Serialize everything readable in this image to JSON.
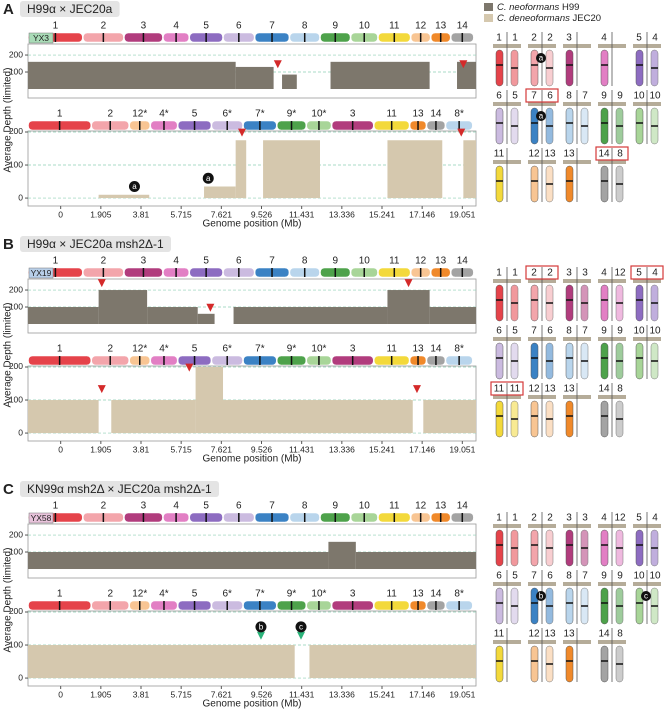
{
  "legend": [
    {
      "species": "C. neoformans",
      "strain": "H99",
      "color": "#7d776c"
    },
    {
      "species": "C. deneoformans",
      "strain": "JEC20",
      "color": "#d5c8ae"
    }
  ],
  "ylabel": "Average Depth (limited)",
  "xlabel": "Genome position (Mb)",
  "xlim": [
    -1.55,
    19.7
  ],
  "xticks": [
    0,
    1.905,
    3.81,
    5.715,
    7.621,
    9.526,
    11.431,
    13.336,
    15.241,
    17.146,
    19.051
  ],
  "grid": true,
  "panels": [
    {
      "letter": "A",
      "title": "H99α × JEC20a",
      "strain": "YX3",
      "strain_color": "#a9dbb7",
      "tracks": [
        {
          "labels": [
            "1",
            "2",
            "3",
            "4",
            "5",
            "6",
            "7",
            "8",
            "9",
            "10",
            "11",
            "12",
            "13",
            "14"
          ],
          "lengths": [
            2.6,
            1.95,
            1.85,
            1.25,
            1.6,
            1.5,
            1.65,
            1.45,
            1.45,
            1.3,
            1.55,
            0.95,
            0.95,
            1.1
          ],
          "colors": [
            "#e5434a",
            "#f3a5ab",
            "#b13c7d",
            "#e27fc4",
            "#8d6cc1",
            "#cbbbe0",
            "#3b82c4",
            "#b9d5ec",
            "#4ea24b",
            "#a8d598",
            "#f3d93b",
            "#f8c593",
            "#f0892a",
            "#a3a3a3"
          ],
          "ylim": [
            -53,
            265
          ],
          "yticks": [
            100,
            200
          ],
          "segments": [
            {
              "start": -1.55,
              "end": 8.3,
              "depth": 160
            },
            {
              "start": 8.3,
              "end": 10.1,
              "depth": 130
            },
            {
              "start": 10.5,
              "end": 11.2,
              "depth": 85
            },
            {
              "start": 12.8,
              "end": 17.5,
              "depth": 160
            },
            {
              "start": 18.8,
              "end": 19.7,
              "depth": 160
            }
          ],
          "markers": [
            {
              "x": 10.3,
              "y": 140,
              "color": "#d42a2a"
            },
            {
              "x": 19.1,
              "y": 140,
              "color": "#d42a2a"
            }
          ]
        },
        {
          "labels": [
            "1",
            "2",
            "12*",
            "4*",
            "5",
            "6*",
            "7*",
            "9*",
            "10*",
            "3",
            "11",
            "13",
            "14",
            "8*"
          ],
          "lengths": [
            3.0,
            1.8,
            1.0,
            1.3,
            1.6,
            1.5,
            1.6,
            1.4,
            1.2,
            2.0,
            1.7,
            0.8,
            0.9,
            1.3
          ],
          "colors": [
            "#e5434a",
            "#f3a5ab",
            "#f8c593",
            "#e27fc4",
            "#8d6cc1",
            "#cbbbe0",
            "#3b82c4",
            "#4ea24b",
            "#a8d598",
            "#b13c7d",
            "#f3d93b",
            "#f0892a",
            "#a3a3a3",
            "#b9d5ec"
          ],
          "ylim": [
            -24,
            203
          ],
          "yticks": [
            0,
            100,
            200
          ],
          "segments": [
            {
              "start": 1.8,
              "end": 4.2,
              "depth": 10
            },
            {
              "start": 6.8,
              "end": 8.3,
              "depth": 35
            },
            {
              "start": 8.3,
              "end": 8.8,
              "depth": 175
            },
            {
              "start": 9.6,
              "end": 12.3,
              "depth": 175
            },
            {
              "start": 15.5,
              "end": 18.1,
              "depth": 175
            },
            {
              "start": 19.1,
              "end": 19.7,
              "depth": 175
            }
          ],
          "markers": [
            {
              "x": 8.6,
              "y": 195,
              "color": "#d42a2a"
            },
            {
              "x": 19.0,
              "y": 195,
              "color": "#d42a2a"
            }
          ],
          "annotations": [
            {
              "x": 3.5,
              "y": 35,
              "text": "a"
            },
            {
              "x": 7.0,
              "y": 60,
              "text": "a"
            }
          ]
        }
      ],
      "karyotype": [
        {
          "left": "1",
          "right": "1"
        },
        {
          "left": "2",
          "right": "2",
          "note": "a"
        },
        {
          "left": "3"
        },
        {
          "left": "4"
        },
        {
          "left": "5",
          "right": "4"
        },
        {
          "left": "6",
          "right": "5"
        },
        {
          "left": "7",
          "right": "6",
          "boxed": true,
          "note": "a"
        },
        {
          "left": "8",
          "right": "7"
        },
        {
          "left": "9",
          "right": "9"
        },
        {
          "left": "10",
          "right": "10"
        },
        {
          "left": "11"
        },
        {
          "left": "12",
          "right": "13"
        },
        {
          "left": "13"
        },
        {
          "left": "14",
          "right": "8",
          "boxed": true
        }
      ]
    },
    {
      "letter": "B",
      "title": "H99α × JEC20a msh2Δ-1",
      "strain": "YX19",
      "strain_color": "#b8cfe8",
      "tracks": [
        {
          "labels": [
            "1",
            "2",
            "3",
            "4",
            "5",
            "6",
            "7",
            "8",
            "9",
            "10",
            "11",
            "12",
            "13",
            "14"
          ],
          "lengths": [
            2.6,
            1.95,
            1.85,
            1.25,
            1.6,
            1.5,
            1.65,
            1.45,
            1.45,
            1.3,
            1.55,
            0.95,
            0.95,
            1.1
          ],
          "colors": [
            "#e5434a",
            "#f3a5ab",
            "#b13c7d",
            "#e27fc4",
            "#8d6cc1",
            "#cbbbe0",
            "#3b82c4",
            "#b9d5ec",
            "#4ea24b",
            "#a8d598",
            "#f3d93b",
            "#f8c593",
            "#f0892a",
            "#a3a3a3"
          ],
          "ylim": [
            -53,
            265
          ],
          "yticks": [
            100,
            200
          ],
          "segments": [
            {
              "start": -1.55,
              "end": 1.8,
              "depth": 100
            },
            {
              "start": 1.8,
              "end": 4.1,
              "depth": 200
            },
            {
              "start": 4.1,
              "end": 6.5,
              "depth": 100
            },
            {
              "start": 6.5,
              "end": 7.3,
              "depth": 60
            },
            {
              "start": 8.2,
              "end": 15.5,
              "depth": 100
            },
            {
              "start": 15.5,
              "end": 17.5,
              "depth": 200
            },
            {
              "start": 17.5,
              "end": 19.7,
              "depth": 100
            }
          ],
          "markers": [
            {
              "x": 1.95,
              "y": 235,
              "color": "#d42a2a"
            },
            {
              "x": 7.1,
              "y": 90,
              "color": "#d42a2a"
            },
            {
              "x": 16.5,
              "y": 235,
              "color": "#d42a2a"
            }
          ]
        },
        {
          "labels": [
            "1",
            "2",
            "12*",
            "4*",
            "5",
            "6*",
            "7*",
            "9*",
            "10*",
            "3",
            "11",
            "13",
            "14",
            "8*"
          ],
          "lengths": [
            3.0,
            1.8,
            1.0,
            1.3,
            1.6,
            1.5,
            1.6,
            1.4,
            1.2,
            2.0,
            1.7,
            0.8,
            0.9,
            1.3
          ],
          "colors": [
            "#e5434a",
            "#f3a5ab",
            "#f8c593",
            "#e27fc4",
            "#8d6cc1",
            "#cbbbe0",
            "#3b82c4",
            "#4ea24b",
            "#a8d598",
            "#b13c7d",
            "#f3d93b",
            "#f0892a",
            "#a3a3a3",
            "#b9d5ec"
          ],
          "ylim": [
            -24,
            203
          ],
          "yticks": [
            0,
            100,
            200
          ],
          "segments": [
            {
              "start": -1.55,
              "end": 1.8,
              "depth": 100
            },
            {
              "start": 2.4,
              "end": 6.4,
              "depth": 100
            },
            {
              "start": 6.4,
              "end": 7.7,
              "depth": 200
            },
            {
              "start": 7.7,
              "end": 16.7,
              "depth": 100
            },
            {
              "start": 17.2,
              "end": 19.7,
              "depth": 100
            }
          ],
          "markers": [
            {
              "x": 1.95,
              "y": 130,
              "color": "#d42a2a"
            },
            {
              "x": 6.1,
              "y": 195,
              "color": "#d42a2a"
            },
            {
              "x": 16.9,
              "y": 130,
              "color": "#d42a2a"
            }
          ]
        }
      ],
      "karyotype": [
        {
          "left": "1",
          "right": "1"
        },
        {
          "left": "2",
          "right": "2",
          "boxed": true
        },
        {
          "left": "3",
          "right": "3"
        },
        {
          "left": "4",
          "right": "12"
        },
        {
          "left": "5",
          "right": "4",
          "boxed": true
        },
        {
          "left": "6",
          "right": "5"
        },
        {
          "left": "7",
          "right": "6"
        },
        {
          "left": "8",
          "right": "7"
        },
        {
          "left": "9",
          "right": "9"
        },
        {
          "left": "10",
          "right": "10"
        },
        {
          "left": "11",
          "right": "11",
          "boxed": true
        },
        {
          "left": "12",
          "right": "13"
        },
        {
          "left": "13"
        },
        {
          "left": "14",
          "right": "8"
        }
      ]
    },
    {
      "letter": "C",
      "title": "KN99α msh2Δ × JEC20a msh2Δ-1",
      "strain": "YX58",
      "strain_color": "#e8c3db",
      "tracks": [
        {
          "labels": [
            "1",
            "2",
            "3",
            "4",
            "5",
            "6",
            "7",
            "8",
            "9",
            "10",
            "11",
            "12",
            "13",
            "14"
          ],
          "lengths": [
            2.6,
            1.95,
            1.85,
            1.25,
            1.6,
            1.5,
            1.65,
            1.45,
            1.45,
            1.3,
            1.55,
            0.95,
            0.95,
            1.1
          ],
          "colors": [
            "#e5434a",
            "#f3a5ab",
            "#b13c7d",
            "#e27fc4",
            "#8d6cc1",
            "#cbbbe0",
            "#3b82c4",
            "#b9d5ec",
            "#4ea24b",
            "#a8d598",
            "#f3d93b",
            "#f8c593",
            "#f0892a",
            "#a3a3a3"
          ],
          "ylim": [
            -53,
            265
          ],
          "yticks": [
            100,
            200
          ],
          "segments": [
            {
              "start": -1.55,
              "end": 12.7,
              "depth": 100
            },
            {
              "start": 12.7,
              "end": 14.0,
              "depth": 160
            },
            {
              "start": 14.0,
              "end": 19.7,
              "depth": 100
            }
          ],
          "markers": []
        },
        {
          "labels": [
            "1",
            "2",
            "12*",
            "4*",
            "5",
            "6*",
            "7*",
            "9*",
            "10*",
            "3",
            "11",
            "13",
            "14",
            "8*"
          ],
          "lengths": [
            3.0,
            1.8,
            1.0,
            1.3,
            1.6,
            1.5,
            1.6,
            1.4,
            1.2,
            2.0,
            1.7,
            0.8,
            0.9,
            1.3
          ],
          "colors": [
            "#e5434a",
            "#f3a5ab",
            "#f8c593",
            "#e27fc4",
            "#8d6cc1",
            "#cbbbe0",
            "#3b82c4",
            "#4ea24b",
            "#a8d598",
            "#b13c7d",
            "#f3d93b",
            "#f0892a",
            "#a3a3a3",
            "#b9d5ec"
          ],
          "ylim": [
            -24,
            203
          ],
          "yticks": [
            0,
            100,
            200
          ],
          "segments": [
            {
              "start": -1.55,
              "end": 11.1,
              "depth": 100
            },
            {
              "start": 11.8,
              "end": 19.7,
              "depth": 100
            }
          ],
          "markers": [
            {
              "x": 9.5,
              "y": 125,
              "color": "#2bb37a"
            },
            {
              "x": 11.4,
              "y": 125,
              "color": "#2bb37a"
            }
          ],
          "annotations": [
            {
              "x": 9.5,
              "y": 155,
              "text": "b"
            },
            {
              "x": 11.4,
              "y": 155,
              "text": "c"
            }
          ]
        }
      ],
      "karyotype": [
        {
          "left": "1",
          "right": "1"
        },
        {
          "left": "2",
          "right": "2"
        },
        {
          "left": "3",
          "right": "3"
        },
        {
          "left": "4",
          "right": "12"
        },
        {
          "left": "5",
          "right": "4"
        },
        {
          "left": "6",
          "right": "5"
        },
        {
          "left": "7",
          "right": "6",
          "note": "b"
        },
        {
          "left": "8",
          "right": "7"
        },
        {
          "left": "9",
          "right": "9"
        },
        {
          "left": "10",
          "right": "10",
          "note": "c"
        },
        {
          "left": "11"
        },
        {
          "left": "12",
          "right": "13"
        },
        {
          "left": "13"
        },
        {
          "left": "14",
          "right": "8"
        }
      ]
    }
  ]
}
